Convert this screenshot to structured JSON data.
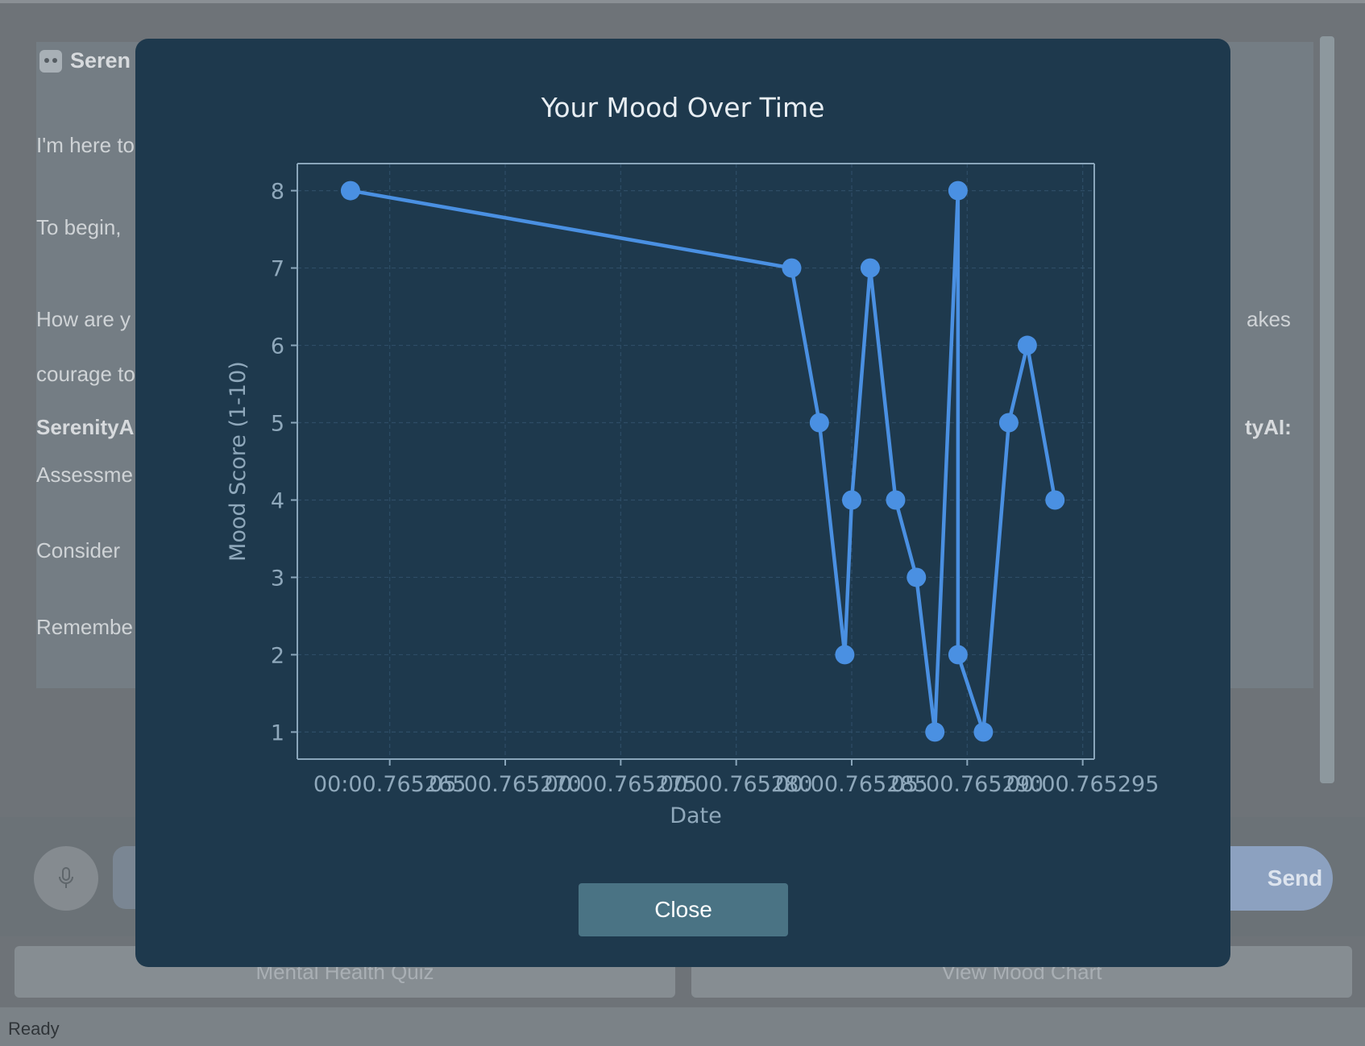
{
  "chat": {
    "bot_name": "Seren",
    "lines": [
      "I'm here to",
      "To begin,",
      "How are y",
      "akes",
      "courage to",
      "SerenityA",
      "tyAI:",
      "Assessme",
      "Consider",
      "Remembe"
    ]
  },
  "input": {
    "send_label": "Send"
  },
  "tools": {
    "quiz_label": "Mental Health Quiz",
    "mood_label": "View Mood Chart"
  },
  "status": {
    "text": "Ready"
  },
  "modal": {
    "title": "Your Mood Over Time",
    "close_label": "Close"
  },
  "chart_data": {
    "type": "line",
    "xlabel": "Date",
    "ylabel": "Mood Score (1-10)",
    "x_tick_labels": [
      "00:00.765265",
      "05:00.765270",
      "00:00.765275",
      "00:00.765280",
      "00:00.765285",
      "05:00.765290",
      "00:00.765295"
    ],
    "x_ticks": [
      0.765265,
      0.76527,
      0.765275,
      0.76528,
      0.765285,
      0.76529,
      0.765295
    ],
    "xlim": [
      0.765261,
      0.7652955
    ],
    "ylim": [
      0.65,
      8.35
    ],
    "y_ticks": [
      1,
      2,
      3,
      4,
      5,
      6,
      7,
      8
    ],
    "grid": true,
    "color": "#4a90e2",
    "x": [
      0.7652633,
      0.7652824,
      0.7652836,
      0.7652847,
      0.765285,
      0.7652858,
      0.7652869,
      0.7652878,
      0.7652886,
      0.7652896,
      0.7652896,
      0.7652907,
      0.7652918,
      0.7652926,
      0.7652938
    ],
    "y": [
      8,
      7,
      5,
      2,
      4,
      7,
      4,
      3,
      1,
      8,
      2,
      1,
      5,
      6,
      4
    ]
  }
}
